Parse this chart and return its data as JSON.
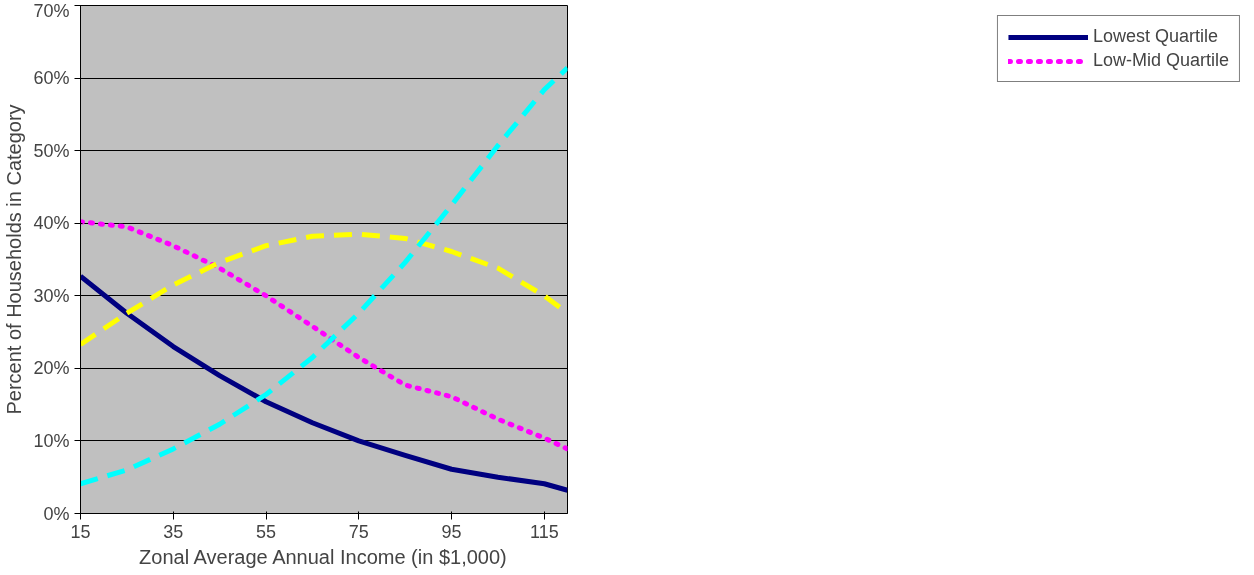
{
  "chart_data": {
    "type": "line",
    "xlabel": "Zonal Average Annual Income (in $1,000)",
    "ylabel": "Percent of Households in Category",
    "x": [
      15,
      25,
      35,
      45,
      55,
      65,
      75,
      85,
      95,
      105,
      115,
      120
    ],
    "xlim": [
      15,
      120
    ],
    "xticks": [
      15,
      35,
      55,
      75,
      95,
      115
    ],
    "ylim": [
      0,
      70
    ],
    "yticks": [
      {
        "value": 0,
        "label": "0%"
      },
      {
        "value": 10,
        "label": "10%"
      },
      {
        "value": 20,
        "label": "20%"
      },
      {
        "value": 30,
        "label": "30%"
      },
      {
        "value": 40,
        "label": "40%"
      },
      {
        "value": 50,
        "label": "50%"
      },
      {
        "value": 60,
        "label": "60%"
      },
      {
        "value": 70,
        "label": "70%"
      }
    ],
    "grid": "y",
    "legend": "right",
    "series": [
      {
        "name": "Lowest Quartile",
        "color": "#000080",
        "line_style": "solid",
        "values": [
          32.7,
          27.6,
          23,
          19,
          15.4,
          12.5,
          10,
          8,
          6.1,
          5,
          4.1,
          3.2
        ]
      },
      {
        "name": "Low-Mid Quartile",
        "color": "#ff00ff",
        "line_style": "dotted",
        "values": [
          40.2,
          39.5,
          36.9,
          33.8,
          30,
          25.8,
          21.5,
          17.7,
          16.1,
          13,
          10.4,
          8.9
        ]
      },
      {
        "color": "#ffff00",
        "line_style": "dashed",
        "values": [
          23.3,
          27.6,
          31.5,
          34.6,
          36.9,
          38.2,
          38.5,
          37.9,
          36.1,
          33.8,
          30,
          27.6
        ]
      },
      {
        "color": "#00ffff",
        "line_style": "dashed",
        "values": [
          4.1,
          6,
          8.9,
          12.3,
          16.4,
          21.5,
          27.6,
          34.6,
          42.5,
          50.7,
          58.4,
          61.4
        ]
      }
    ]
  }
}
